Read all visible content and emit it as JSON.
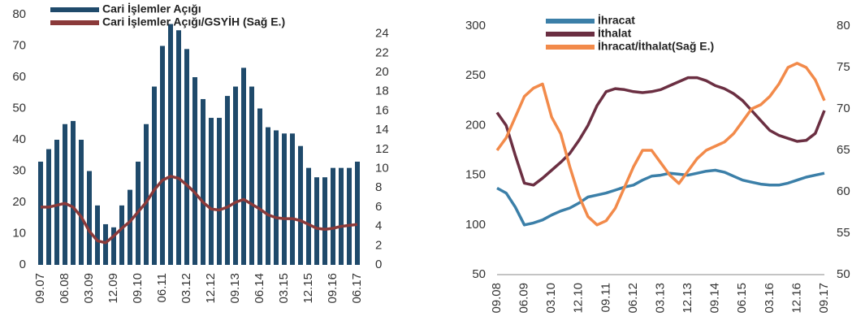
{
  "chart_data": [
    {
      "type": "bar",
      "categories": [
        "09.07",
        null,
        null,
        "06.08",
        null,
        null,
        "03.09",
        null,
        null,
        "12.09",
        null,
        null,
        "09.10",
        null,
        null,
        "06.11",
        null,
        null,
        "03.12",
        null,
        null,
        "12.12",
        null,
        null,
        "09.13",
        null,
        null,
        "06.14",
        null,
        null,
        "03.15",
        null,
        null,
        "12.15",
        null,
        null,
        "09.16",
        null,
        null,
        "06.17"
      ],
      "series": [
        {
          "name": "Cari İşlemler Açığı",
          "color": "#1f4a6b",
          "type": "bar",
          "values": [
            33,
            37,
            40,
            45,
            46,
            40,
            30,
            19,
            13,
            12,
            19,
            24,
            33,
            45,
            57,
            70,
            77,
            75,
            69,
            60,
            53,
            47,
            47,
            54,
            57,
            63,
            57,
            50,
            44,
            43,
            42,
            42,
            38,
            31,
            28,
            28,
            31,
            31,
            31,
            33
          ]
        },
        {
          "name": "Cari İşlemler Açığı/GSYİH (Sağ E.)",
          "color": "#8b3a3a",
          "type": "line",
          "axis": "y2",
          "values": [
            6,
            6,
            6.2,
            6.4,
            6,
            5,
            3.5,
            2.5,
            2.3,
            3,
            3.8,
            4.5,
            5.5,
            6.5,
            7.8,
            8.8,
            9.2,
            9,
            8.3,
            7.5,
            6.5,
            5.8,
            5.7,
            6,
            6.5,
            6.8,
            6.3,
            5.8,
            5.2,
            4.9,
            4.8,
            4.8,
            4.6,
            4.2,
            3.8,
            3.7,
            3.8,
            4,
            4.1,
            4.2
          ]
        }
      ],
      "ylim": [
        0,
        80
      ],
      "yticks": [
        0,
        10,
        20,
        30,
        40,
        50,
        60,
        70,
        80
      ],
      "y2lim": [
        0,
        26
      ],
      "y2ticks": [
        0,
        2,
        4,
        6,
        8,
        10,
        12,
        14,
        16,
        18,
        20,
        22,
        24
      ],
      "grid": false
    },
    {
      "type": "line",
      "categories": [
        "09.08",
        null,
        null,
        "06.09",
        null,
        null,
        "03.10",
        null,
        null,
        "12.10",
        null,
        null,
        "09.11",
        null,
        null,
        "06.12",
        null,
        null,
        "03.13",
        null,
        null,
        "12.13",
        null,
        null,
        "09.14",
        null,
        null,
        "06.15",
        null,
        null,
        "03.16",
        null,
        null,
        "12.16",
        null,
        null,
        "09.17"
      ],
      "series": [
        {
          "name": "İhracat",
          "color": "#3b7fa8",
          "type": "line",
          "values": [
            137,
            132,
            118,
            100,
            102,
            105,
            110,
            114,
            117,
            122,
            128,
            130,
            132,
            135,
            138,
            140,
            145,
            149,
            150,
            152,
            151,
            150,
            152,
            154,
            155,
            153,
            149,
            145,
            143,
            141,
            140,
            140,
            142,
            145,
            148,
            150,
            152
          ]
        },
        {
          "name": "İthalat",
          "color": "#6b2f42",
          "type": "line",
          "values": [
            213,
            200,
            170,
            142,
            140,
            147,
            155,
            163,
            172,
            185,
            200,
            220,
            234,
            237,
            236,
            234,
            233,
            234,
            236,
            240,
            244,
            248,
            248,
            245,
            240,
            237,
            232,
            225,
            215,
            205,
            195,
            190,
            187,
            184,
            185,
            192,
            215
          ]
        },
        {
          "name": "İhracat/İthalat(Sağ E.)",
          "color": "#f28a4a",
          "type": "line",
          "axis": "y2",
          "values": [
            65,
            66.5,
            69,
            71.5,
            72.5,
            73,
            69,
            67,
            63,
            59.5,
            57,
            56,
            56.5,
            58,
            60.5,
            63,
            65,
            65,
            63.5,
            62,
            61,
            62.5,
            64,
            65,
            65.5,
            66,
            67,
            68.5,
            70,
            70.5,
            71.5,
            73,
            75,
            75.5,
            75,
            73.5,
            71
          ]
        }
      ],
      "ylim": [
        50,
        300
      ],
      "yticks": [
        50,
        100,
        150,
        200,
        250,
        300
      ],
      "y2lim": [
        50,
        80
      ],
      "y2ticks": [
        50,
        55,
        60,
        65,
        70,
        75,
        80
      ],
      "grid": false
    }
  ]
}
